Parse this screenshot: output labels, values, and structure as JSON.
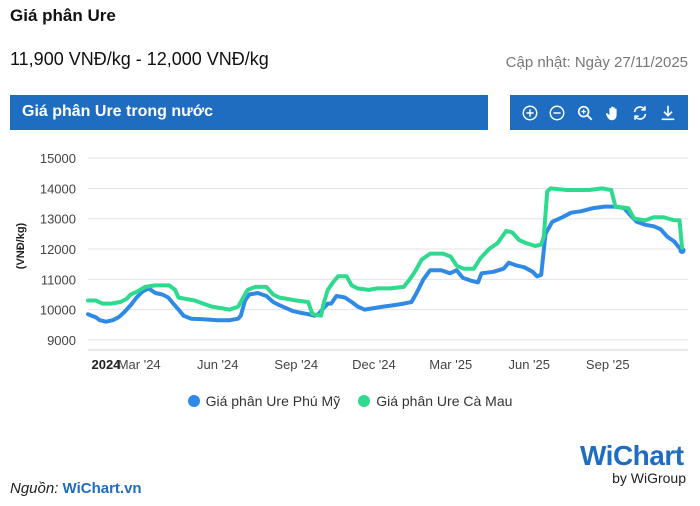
{
  "header": {
    "title": "Giá phân Ure",
    "price_range": "11,900 VNĐ/kg - 12,000 VNĐ/kg",
    "updated": "Cập nhật: Ngày 27/11/2025"
  },
  "panel": {
    "title": "Giá phân Ure trong nước"
  },
  "toolbar": [
    {
      "name": "zoom-in-icon"
    },
    {
      "name": "zoom-out-icon"
    },
    {
      "name": "magnify-icon"
    },
    {
      "name": "pan-hand-icon"
    },
    {
      "name": "reset-icon"
    },
    {
      "name": "download-icon"
    }
  ],
  "chart_data": {
    "type": "line",
    "ylabel": "(VNĐ/kg)",
    "ylim": [
      8700,
      15500
    ],
    "yticks": [
      9000,
      10000,
      11000,
      12000,
      13000,
      14000,
      15000
    ],
    "xlim": [
      "2024-01-01",
      "2025-12-04"
    ],
    "xticks": [
      {
        "date": "2024-01-01",
        "label": "2024",
        "bold": true
      },
      {
        "date": "2024-03-01",
        "label": "Mar '24"
      },
      {
        "date": "2024-06-01",
        "label": "Jun '24"
      },
      {
        "date": "2024-09-01",
        "label": "Sep '24"
      },
      {
        "date": "2024-12-01",
        "label": "Dec '24"
      },
      {
        "date": "2025-03-01",
        "label": "Mar '25"
      },
      {
        "date": "2025-06-01",
        "label": "Jun '25"
      },
      {
        "date": "2025-09-01",
        "label": "Sep '25"
      }
    ],
    "grid": true,
    "legend_position": "bottom",
    "series": [
      {
        "name": "Giá phân Ure Phú Mỹ",
        "color": "#2f8ae5",
        "points": [
          [
            "2024-01-01",
            9850
          ],
          [
            "2024-01-05",
            9800
          ],
          [
            "2024-01-10",
            9750
          ],
          [
            "2024-01-15",
            9650
          ],
          [
            "2024-01-22",
            9600
          ],
          [
            "2024-01-30",
            9650
          ],
          [
            "2024-02-06",
            9750
          ],
          [
            "2024-02-12",
            9900
          ],
          [
            "2024-02-20",
            10150
          ],
          [
            "2024-02-27",
            10400
          ],
          [
            "2024-03-05",
            10600
          ],
          [
            "2024-03-12",
            10700
          ],
          [
            "2024-03-20",
            10550
          ],
          [
            "2024-03-28",
            10500
          ],
          [
            "2024-04-04",
            10400
          ],
          [
            "2024-04-10",
            10200
          ],
          [
            "2024-04-16",
            10000
          ],
          [
            "2024-04-22",
            9800
          ],
          [
            "2024-05-01",
            9700
          ],
          [
            "2024-05-15",
            9680
          ],
          [
            "2024-06-01",
            9650
          ],
          [
            "2024-06-15",
            9650
          ],
          [
            "2024-06-25",
            9700
          ],
          [
            "2024-06-28",
            9800
          ],
          [
            "2024-07-03",
            10300
          ],
          [
            "2024-07-08",
            10500
          ],
          [
            "2024-07-18",
            10550
          ],
          [
            "2024-07-28",
            10450
          ],
          [
            "2024-08-05",
            10250
          ],
          [
            "2024-08-12",
            10150
          ],
          [
            "2024-08-20",
            10050
          ],
          [
            "2024-08-28",
            9950
          ],
          [
            "2024-09-05",
            9900
          ],
          [
            "2024-09-15",
            9850
          ],
          [
            "2024-09-22",
            9800
          ],
          [
            "2024-09-27",
            9850
          ],
          [
            "2024-10-03",
            10050
          ],
          [
            "2024-10-08",
            10200
          ],
          [
            "2024-10-12",
            10200
          ],
          [
            "2024-10-18",
            10450
          ],
          [
            "2024-10-28",
            10400
          ],
          [
            "2024-11-05",
            10250
          ],
          [
            "2024-11-12",
            10100
          ],
          [
            "2024-11-20",
            10000
          ],
          [
            "2024-12-01",
            10050
          ],
          [
            "2024-12-12",
            10100
          ],
          [
            "2024-12-25",
            10150
          ],
          [
            "2025-01-05",
            10200
          ],
          [
            "2025-01-14",
            10250
          ],
          [
            "2025-01-20",
            10550
          ],
          [
            "2025-01-28",
            11000
          ],
          [
            "2025-02-05",
            11300
          ],
          [
            "2025-02-18",
            11300
          ],
          [
            "2025-02-28",
            11200
          ],
          [
            "2025-03-08",
            11300
          ],
          [
            "2025-03-15",
            11050
          ],
          [
            "2025-03-25",
            10950
          ],
          [
            "2025-04-02",
            10900
          ],
          [
            "2025-04-06",
            11200
          ],
          [
            "2025-04-20",
            11250
          ],
          [
            "2025-05-02",
            11350
          ],
          [
            "2025-05-08",
            11550
          ],
          [
            "2025-05-18",
            11450
          ],
          [
            "2025-05-26",
            11400
          ],
          [
            "2025-06-05",
            11250
          ],
          [
            "2025-06-10",
            11100
          ],
          [
            "2025-06-15",
            11150
          ],
          [
            "2025-06-20",
            12500
          ],
          [
            "2025-06-28",
            12900
          ],
          [
            "2025-07-10",
            13050
          ],
          [
            "2025-07-20",
            13200
          ],
          [
            "2025-08-01",
            13250
          ],
          [
            "2025-08-15",
            13350
          ],
          [
            "2025-08-28",
            13400
          ],
          [
            "2025-09-10",
            13400
          ],
          [
            "2025-09-20",
            13350
          ],
          [
            "2025-09-28",
            13100
          ],
          [
            "2025-10-05",
            12900
          ],
          [
            "2025-10-15",
            12800
          ],
          [
            "2025-10-25",
            12750
          ],
          [
            "2025-11-02",
            12650
          ],
          [
            "2025-11-10",
            12400
          ],
          [
            "2025-11-18",
            12250
          ],
          [
            "2025-11-22",
            12100
          ],
          [
            "2025-11-27",
            11950
          ]
        ]
      },
      {
        "name": "Giá phân Ure Cà Mau",
        "color": "#2fd98d",
        "points": [
          [
            "2024-01-01",
            10300
          ],
          [
            "2024-01-10",
            10300
          ],
          [
            "2024-01-18",
            10200
          ],
          [
            "2024-01-28",
            10200
          ],
          [
            "2024-02-08",
            10250
          ],
          [
            "2024-02-15",
            10350
          ],
          [
            "2024-02-20",
            10500
          ],
          [
            "2024-02-28",
            10600
          ],
          [
            "2024-03-08",
            10750
          ],
          [
            "2024-03-20",
            10800
          ],
          [
            "2024-04-05",
            10800
          ],
          [
            "2024-04-12",
            10650
          ],
          [
            "2024-04-16",
            10400
          ],
          [
            "2024-04-25",
            10350
          ],
          [
            "2024-05-05",
            10300
          ],
          [
            "2024-05-15",
            10200
          ],
          [
            "2024-05-25",
            10100
          ],
          [
            "2024-06-05",
            10050
          ],
          [
            "2024-06-15",
            10000
          ],
          [
            "2024-06-25",
            10100
          ],
          [
            "2024-07-01",
            10400
          ],
          [
            "2024-07-06",
            10650
          ],
          [
            "2024-07-15",
            10750
          ],
          [
            "2024-07-28",
            10750
          ],
          [
            "2024-08-05",
            10500
          ],
          [
            "2024-08-12",
            10400
          ],
          [
            "2024-08-22",
            10350
          ],
          [
            "2024-09-01",
            10300
          ],
          [
            "2024-09-15",
            10250
          ],
          [
            "2024-09-20",
            9850
          ],
          [
            "2024-09-30",
            9800
          ],
          [
            "2024-10-03",
            10200
          ],
          [
            "2024-10-08",
            10650
          ],
          [
            "2024-10-14",
            10900
          ],
          [
            "2024-10-20",
            11100
          ],
          [
            "2024-10-30",
            11100
          ],
          [
            "2024-11-05",
            10800
          ],
          [
            "2024-11-12",
            10700
          ],
          [
            "2024-11-25",
            10650
          ],
          [
            "2024-12-05",
            10700
          ],
          [
            "2024-12-20",
            10700
          ],
          [
            "2025-01-05",
            10750
          ],
          [
            "2025-01-12",
            11000
          ],
          [
            "2025-01-18",
            11250
          ],
          [
            "2025-01-26",
            11650
          ],
          [
            "2025-02-05",
            11850
          ],
          [
            "2025-02-20",
            11850
          ],
          [
            "2025-03-01",
            11750
          ],
          [
            "2025-03-08",
            11450
          ],
          [
            "2025-03-16",
            11350
          ],
          [
            "2025-03-28",
            11350
          ],
          [
            "2025-04-05",
            11700
          ],
          [
            "2025-04-15",
            12000
          ],
          [
            "2025-04-25",
            12200
          ],
          [
            "2025-05-05",
            12600
          ],
          [
            "2025-05-12",
            12550
          ],
          [
            "2025-05-20",
            12300
          ],
          [
            "2025-05-28",
            12200
          ],
          [
            "2025-06-08",
            12100
          ],
          [
            "2025-06-15",
            12150
          ],
          [
            "2025-06-18",
            12400
          ],
          [
            "2025-06-22",
            13900
          ],
          [
            "2025-06-26",
            14000
          ],
          [
            "2025-07-15",
            13950
          ],
          [
            "2025-08-10",
            13950
          ],
          [
            "2025-08-25",
            14000
          ],
          [
            "2025-09-05",
            13950
          ],
          [
            "2025-09-10",
            13400
          ],
          [
            "2025-09-25",
            13350
          ],
          [
            "2025-10-02",
            13000
          ],
          [
            "2025-10-15",
            12950
          ],
          [
            "2025-10-25",
            13050
          ],
          [
            "2025-11-05",
            13050
          ],
          [
            "2025-11-18",
            12950
          ],
          [
            "2025-11-24",
            12950
          ],
          [
            "2025-11-27",
            12050
          ]
        ]
      }
    ]
  },
  "footer": {
    "source_prefix": "Nguồn: ",
    "source_link": "WiChart.vn",
    "logo_main": "WiChart",
    "logo_sub": "by WiGroup"
  }
}
